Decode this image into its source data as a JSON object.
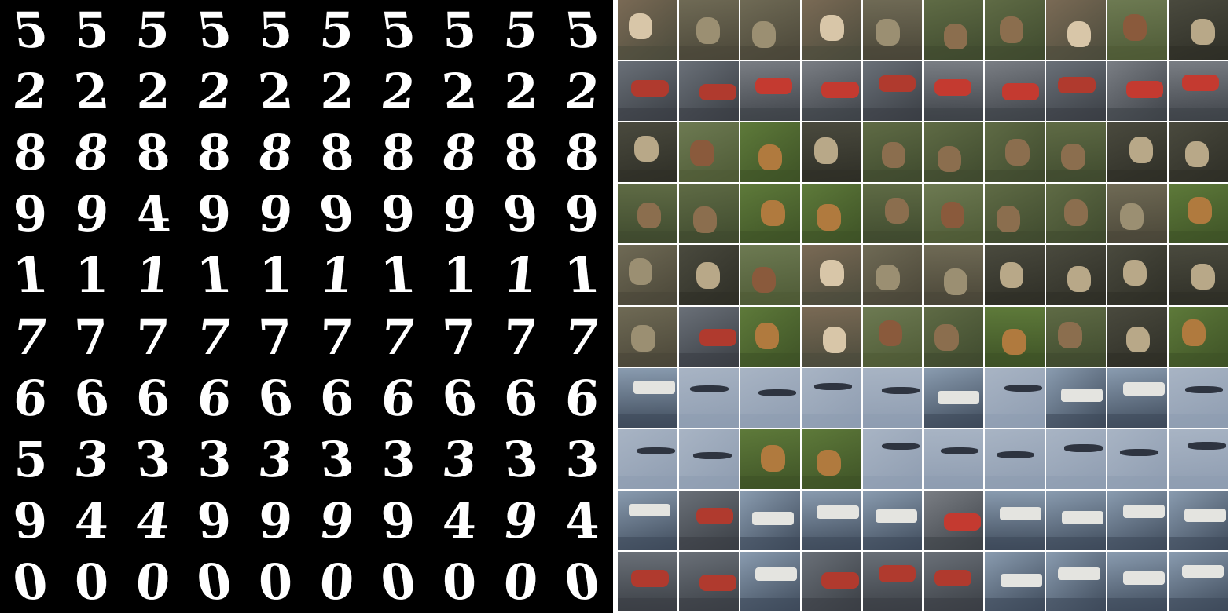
{
  "mnist_grid": {
    "rows": [
      [
        "5",
        "5",
        "5",
        "5",
        "5",
        "5",
        "5",
        "5",
        "5",
        "5"
      ],
      [
        "2",
        "2",
        "2",
        "2",
        "2",
        "2",
        "2",
        "2",
        "2",
        "2"
      ],
      [
        "8",
        "8",
        "8",
        "8",
        "8",
        "8",
        "8",
        "8",
        "8",
        "8"
      ],
      [
        "9",
        "9",
        "4",
        "9",
        "9",
        "9",
        "9",
        "9",
        "9",
        "9"
      ],
      [
        "1",
        "1",
        "1",
        "1",
        "1",
        "1",
        "1",
        "1",
        "1",
        "1"
      ],
      [
        "7",
        "7",
        "7",
        "7",
        "7",
        "7",
        "7",
        "7",
        "7",
        "7"
      ],
      [
        "6",
        "6",
        "6",
        "6",
        "6",
        "6",
        "6",
        "6",
        "6",
        "6"
      ],
      [
        "5",
        "3",
        "3",
        "3",
        "3",
        "3",
        "3",
        "3",
        "3",
        "3"
      ],
      [
        "9",
        "4",
        "4",
        "9",
        "9",
        "9",
        "9",
        "4",
        "9",
        "4"
      ],
      [
        "0",
        "0",
        "0",
        "0",
        "0",
        "0",
        "0",
        "0",
        "0",
        "0"
      ]
    ]
  },
  "photo_grid": {
    "rows": [
      [
        "dog",
        "monkey",
        "monkey",
        "dog",
        "monkey",
        "deer",
        "deer",
        "dog",
        "horse",
        "cat"
      ],
      [
        "truck",
        "truck",
        "automobile",
        "automobile",
        "truck",
        "automobile",
        "automobile",
        "truck",
        "automobile",
        "automobile"
      ],
      [
        "cat",
        "horse",
        "bird",
        "cat",
        "deer",
        "deer",
        "deer",
        "deer",
        "cat",
        "cat"
      ],
      [
        "deer",
        "deer",
        "bird",
        "bird",
        "deer",
        "horse",
        "deer",
        "deer",
        "monkey",
        "bird"
      ],
      [
        "monkey",
        "cat",
        "horse",
        "dog",
        "monkey",
        "monkey",
        "cat",
        "cat",
        "cat",
        "cat"
      ],
      [
        "monkey",
        "truck",
        "bird",
        "dog",
        "horse",
        "deer",
        "bird",
        "deer",
        "cat",
        "bird"
      ],
      [
        "ship",
        "airplane",
        "airplane",
        "airplane",
        "airplane",
        "ship",
        "airplane",
        "ship",
        "ship",
        "airplane"
      ],
      [
        "airplane",
        "airplane",
        "bird",
        "bird",
        "airplane",
        "airplane",
        "airplane",
        "airplane",
        "airplane",
        "airplane"
      ],
      [
        "ship",
        "truck",
        "ship",
        "ship",
        "ship",
        "automobile",
        "ship",
        "ship",
        "ship",
        "ship"
      ],
      [
        "truck",
        "truck",
        "ship",
        "truck",
        "truck",
        "truck",
        "ship",
        "ship",
        "ship",
        "ship"
      ]
    ],
    "palette": {
      "dog": [
        "#7a6a55",
        "#d8c6a8",
        "#4b4b3c"
      ],
      "monkey": [
        "#6f6a55",
        "#9b8f72",
        "#4a4638"
      ],
      "deer": [
        "#5f6b45",
        "#8b6e4e",
        "#3f4a2e"
      ],
      "horse": [
        "#6d7a52",
        "#8a5a3c",
        "#4e5a36"
      ],
      "cat": [
        "#4a4a3e",
        "#b8a888",
        "#2e2e26"
      ],
      "truck": [
        "#6a7078",
        "#b03a2e",
        "#3a3e44"
      ],
      "automobile": [
        "#7a7e84",
        "#c43a30",
        "#3e4248"
      ],
      "bird": [
        "#5e7a3a",
        "#b07a3e",
        "#3e5226"
      ],
      "airplane": [
        "#a8b4c4",
        "#2e3440",
        "#8e9cb0"
      ],
      "ship": [
        "#8a9cb0",
        "#e4e4e0",
        "#3e4a5a"
      ]
    }
  }
}
